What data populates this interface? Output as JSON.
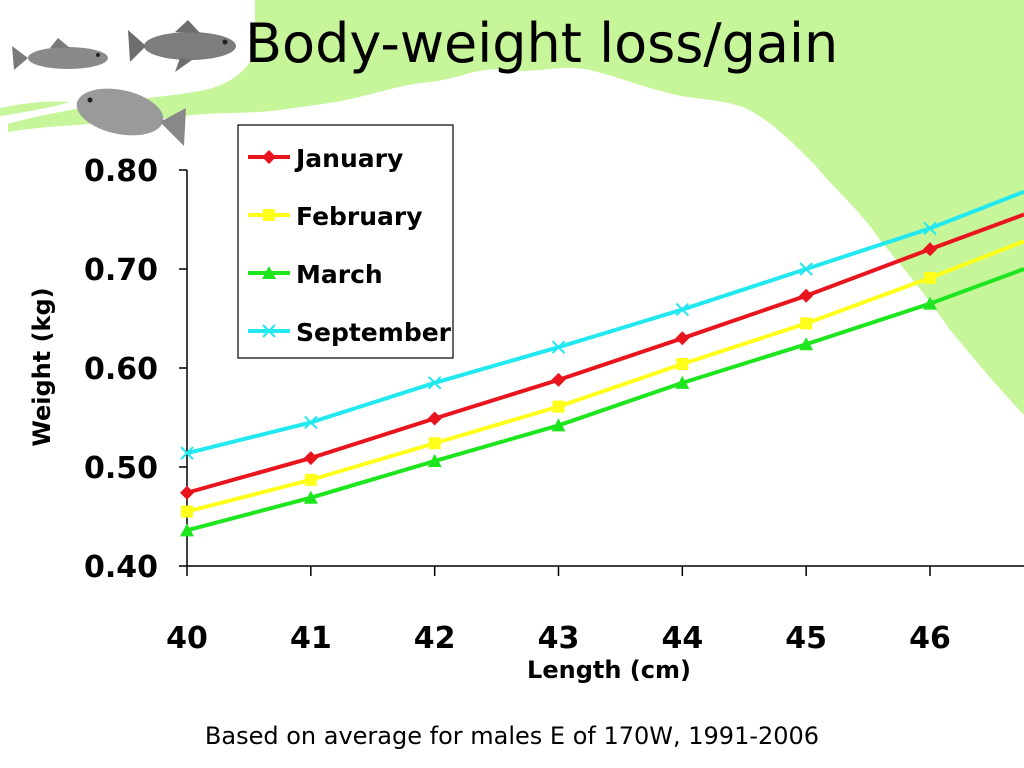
{
  "slide": {
    "title": "Body-weight loss/gain",
    "footnote": "Based on average for males E of 170W, 1991-2006"
  },
  "colors": {
    "background_land": "#c6f59a",
    "January": "#e8141e",
    "February": "#ffff1a",
    "March": "#1ee61e",
    "September": "#22e8f0"
  },
  "chart_data": {
    "type": "line",
    "xlabel": "Length (cm)",
    "ylabel": "Weight (kg)",
    "x": [
      40,
      41,
      42,
      43,
      44,
      45,
      46
    ],
    "xlim": [
      40,
      46.75
    ],
    "ylim": [
      0.4,
      0.8
    ],
    "y_ticks": [
      "0.40",
      "0.50",
      "0.60",
      "0.70",
      "0.80"
    ],
    "x_ticks": [
      "40",
      "41",
      "42",
      "43",
      "44",
      "45",
      "46"
    ],
    "legend_position": "top-left",
    "series": [
      {
        "name": "January",
        "marker": "diamond",
        "values": [
          0.474,
          0.509,
          0.549,
          0.588,
          0.63,
          0.673,
          0.72
        ]
      },
      {
        "name": "February",
        "marker": "square",
        "values": [
          0.455,
          0.487,
          0.524,
          0.561,
          0.604,
          0.645,
          0.691
        ]
      },
      {
        "name": "March",
        "marker": "triangle",
        "values": [
          0.436,
          0.469,
          0.506,
          0.542,
          0.585,
          0.624,
          0.665
        ]
      },
      {
        "name": "September",
        "marker": "x",
        "values": [
          0.514,
          0.545,
          0.585,
          0.621,
          0.659,
          0.7,
          0.741
        ]
      }
    ],
    "line_end": {
      "January": 0.755,
      "February": 0.728,
      "March": 0.7,
      "September": 0.778
    }
  }
}
